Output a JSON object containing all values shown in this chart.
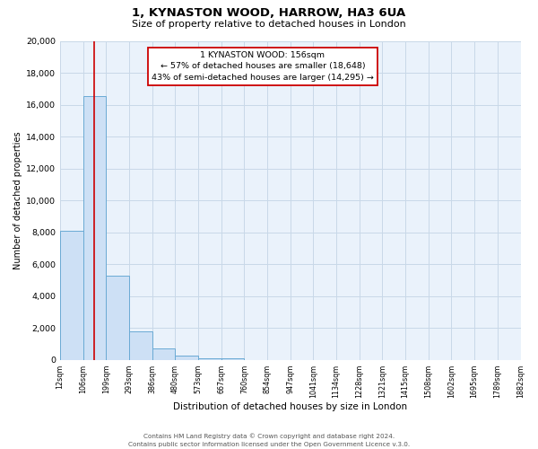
{
  "title": "1, KYNASTON WOOD, HARROW, HA3 6UA",
  "subtitle": "Size of property relative to detached houses in London",
  "xlabel": "Distribution of detached houses by size in London",
  "ylabel": "Number of detached properties",
  "bin_labels": [
    "12sqm",
    "106sqm",
    "199sqm",
    "293sqm",
    "386sqm",
    "480sqm",
    "573sqm",
    "667sqm",
    "760sqm",
    "854sqm",
    "947sqm",
    "1041sqm",
    "1134sqm",
    "1228sqm",
    "1321sqm",
    "1415sqm",
    "1508sqm",
    "1602sqm",
    "1695sqm",
    "1789sqm",
    "1882sqm"
  ],
  "bar_heights": [
    8100,
    16550,
    5300,
    1820,
    730,
    300,
    135,
    100,
    0,
    0,
    0,
    0,
    0,
    0,
    0,
    0,
    0,
    0,
    0,
    0
  ],
  "bar_color": "#cde0f5",
  "bar_edge_color": "#6aaad4",
  "property_line_x": 1.47,
  "property_line_color": "#cc0000",
  "annotation_text": "1 KYNASTON WOOD: 156sqm\n← 57% of detached houses are smaller (18,648)\n43% of semi-detached houses are larger (14,295) →",
  "annotation_box_color": "#ffffff",
  "annotation_box_edge": "#cc0000",
  "ylim": [
    0,
    20000
  ],
  "yticks": [
    0,
    2000,
    4000,
    6000,
    8000,
    10000,
    12000,
    14000,
    16000,
    18000,
    20000
  ],
  "footer_line1": "Contains HM Land Registry data © Crown copyright and database right 2024.",
  "footer_line2": "Contains public sector information licensed under the Open Government Licence v.3.0.",
  "background_color": "#ffffff",
  "grid_color": "#c8d8e8",
  "plot_bg_color": "#eaf2fb"
}
